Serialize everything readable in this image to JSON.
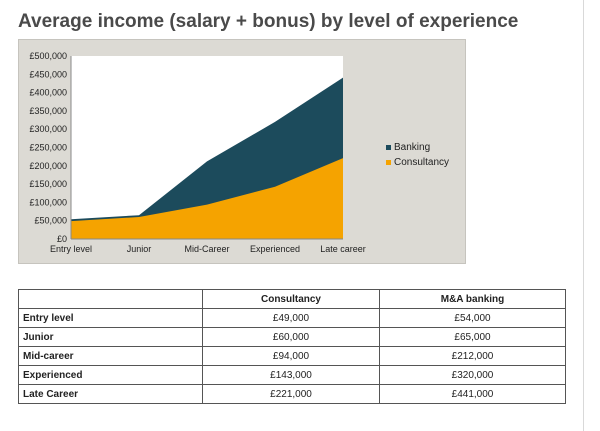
{
  "title": "Average income (salary + bonus) by level of experience",
  "colors": {
    "banking": "#1c4b5c",
    "consultancy": "#f5a300"
  },
  "chart_data": {
    "type": "area",
    "stacked": false,
    "categories": [
      "Entry level",
      "Junior",
      "Mid-Career",
      "Experienced",
      "Late career"
    ],
    "series": [
      {
        "name": "Banking",
        "values": [
          54000,
          65000,
          212000,
          320000,
          441000
        ],
        "color": "#1c4b5c"
      },
      {
        "name": "Consultancy",
        "values": [
          49000,
          60000,
          94000,
          143000,
          221000
        ],
        "color": "#f5a300"
      }
    ],
    "y_ticks": [
      "£0",
      "£50,000",
      "£100,000",
      "£150,000",
      "£200,000",
      "£250,000",
      "£300,000",
      "£350,000",
      "£400,000",
      "£450,000",
      "£500,000"
    ],
    "ylim": [
      0,
      500000
    ],
    "legend_position": "right",
    "grid": false
  },
  "table": {
    "headers": [
      "",
      "Consultancy",
      "M&A banking"
    ],
    "rows": [
      {
        "label": "Entry level",
        "consultancy": "£49,000",
        "banking": "£54,000"
      },
      {
        "label": "Junior",
        "consultancy": "£60,000",
        "banking": "£65,000"
      },
      {
        "label": "Mid-career",
        "consultancy": "£94,000",
        "banking": "£212,000"
      },
      {
        "label": "Experienced",
        "consultancy": "£143,000",
        "banking": "£320,000"
      },
      {
        "label": "Late Career",
        "consultancy": "£221,000",
        "banking": "£441,000"
      }
    ]
  }
}
